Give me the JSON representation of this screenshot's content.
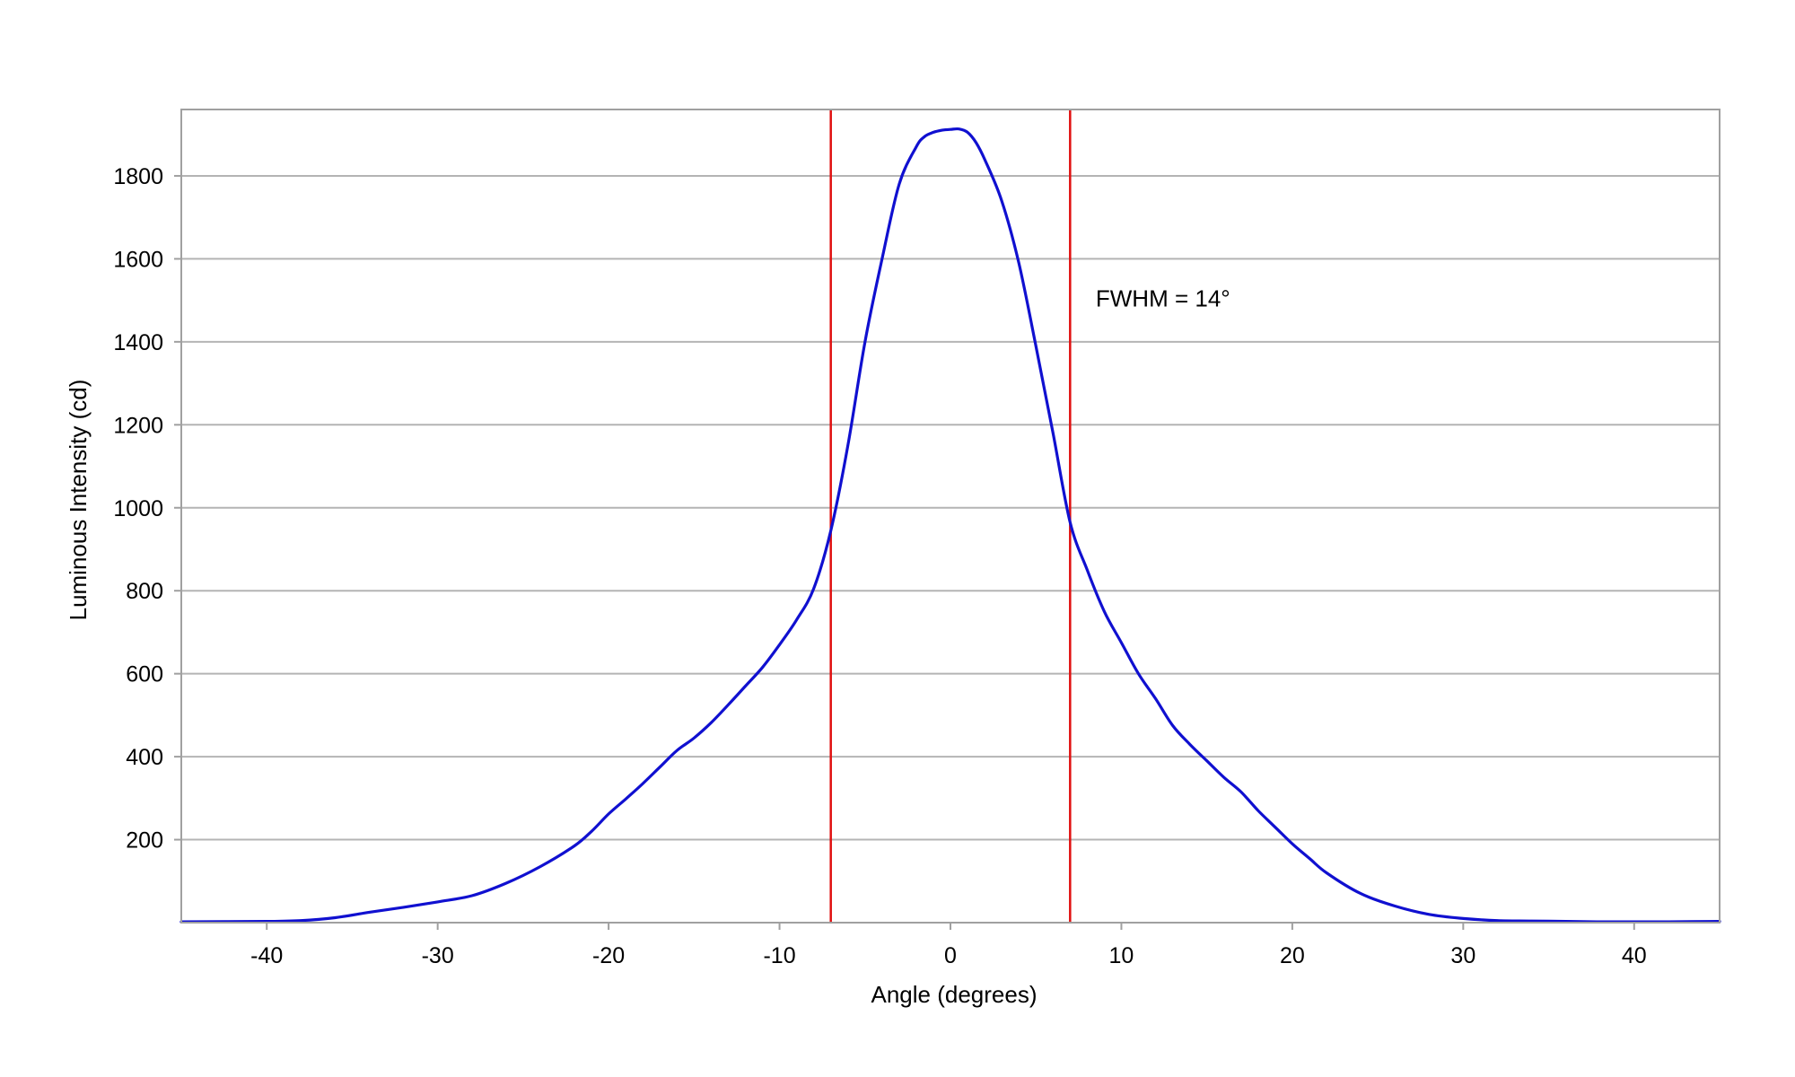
{
  "chart_data": {
    "type": "line",
    "title": "",
    "xlabel": "Angle (degrees)",
    "ylabel": "Luminous Intensity (cd)",
    "xlim": [
      -45,
      45
    ],
    "ylim": [
      0,
      1960
    ],
    "x_ticks": [
      -40,
      -30,
      -20,
      -10,
      0,
      10,
      20,
      30,
      40
    ],
    "y_ticks": [
      200,
      400,
      600,
      800,
      1000,
      1200,
      1400,
      1600,
      1800
    ],
    "grid": {
      "horizontal": true,
      "vertical": false
    },
    "colors": {
      "series": "#1010d0",
      "markers": "#e01010",
      "grid": "#b4b4b4",
      "frame": "#a0a0a0"
    },
    "series": [
      {
        "x": [
          -45,
          -40,
          -38,
          -36,
          -34,
          -32,
          -30,
          -28,
          -26,
          -24,
          -22,
          -21,
          -20,
          -19,
          -18,
          -17,
          -16,
          -15,
          -14,
          -13,
          -12,
          -11,
          -10,
          -9,
          -8,
          -7,
          -6,
          -5,
          -4,
          -3,
          -2,
          -1.5,
          -1,
          -0.5,
          0,
          0.5,
          1,
          1.5,
          2,
          3,
          4,
          5,
          6,
          7,
          8,
          9,
          10,
          11,
          12,
          13,
          14,
          15,
          16,
          17,
          18,
          19,
          20,
          21,
          22,
          24,
          26,
          28,
          30,
          32,
          34,
          36,
          38,
          40,
          42,
          45
        ],
        "y": [
          2,
          3,
          5,
          12,
          25,
          37,
          50,
          65,
          95,
          135,
          185,
          220,
          262,
          298,
          335,
          375,
          415,
          445,
          482,
          525,
          570,
          615,
          670,
          730,
          805,
          945,
          1150,
          1400,
          1600,
          1780,
          1870,
          1895,
          1905,
          1910,
          1912,
          1913,
          1905,
          1880,
          1840,
          1740,
          1590,
          1390,
          1180,
          965,
          850,
          750,
          675,
          600,
          540,
          475,
          430,
          390,
          350,
          315,
          270,
          230,
          190,
          155,
          120,
          70,
          40,
          20,
          10,
          5,
          4,
          3,
          2,
          2,
          2,
          3
        ]
      }
    ],
    "vertical_lines": [
      -7,
      7
    ],
    "annotation": {
      "text": "FWHM = 14°",
      "x": 8.5,
      "y": 1505
    }
  }
}
